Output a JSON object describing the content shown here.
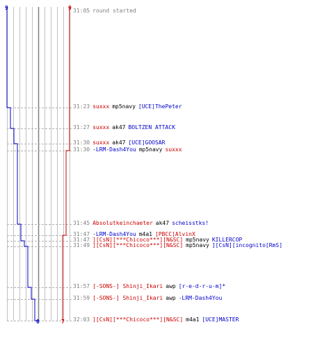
{
  "colors": {
    "team_a": "#0000cc",
    "team_b": "#cc0000",
    "gridline": "#c0c0c0",
    "dashed_line": "#b0b0b0",
    "time": "#808080"
  },
  "counters": {
    "team_a_start": "9",
    "team_b_start": "9",
    "team_a_end": "0",
    "team_b_end": "7"
  },
  "events": [
    {
      "time": "31:05",
      "parts": [
        {
          "text": "round started",
          "team": "gray"
        }
      ],
      "alive_a": 9,
      "alive_b": 9
    },
    {
      "time": "31:23",
      "parts": [
        {
          "text": "suxxx",
          "team": "red"
        },
        {
          "text": "mp5navy",
          "team": "black"
        },
        {
          "text": "[UCE]ThePeter",
          "team": "blue"
        }
      ],
      "alive_a": 8,
      "alive_b": 9
    },
    {
      "time": "31:27",
      "parts": [
        {
          "text": "suxxx",
          "team": "red"
        },
        {
          "text": "ak47",
          "team": "black"
        },
        {
          "text": "BOLTZEN ATTACK",
          "team": "blue"
        }
      ],
      "alive_a": 7,
      "alive_b": 9
    },
    {
      "time": "31:30",
      "parts": [
        {
          "text": "suxxx",
          "team": "red"
        },
        {
          "text": "ak47",
          "team": "black"
        },
        {
          "text": "[UCE]GOOSAR",
          "team": "blue"
        }
      ],
      "alive_a": 6,
      "alive_b": 9
    },
    {
      "time": "31:30",
      "parts": [
        {
          "text": "-LRM-Dash4You",
          "team": "blue"
        },
        {
          "text": "mp5navy",
          "team": "black"
        },
        {
          "text": "suxxx",
          "team": "red"
        }
      ],
      "alive_a": 6,
      "alive_b": 8
    },
    {
      "time": "31:45",
      "parts": [
        {
          "text": "Absolutkeinchaeter",
          "team": "red"
        },
        {
          "text": "ak47",
          "team": "black"
        },
        {
          "text": "scheisstks!",
          "team": "blue"
        }
      ],
      "alive_a": 5,
      "alive_b": 8
    },
    {
      "time": "31:47",
      "parts": [
        {
          "text": "-LRM-Dash4You",
          "team": "blue"
        },
        {
          "text": "m4a1",
          "team": "black"
        },
        {
          "text": "[PBCC]AlvinX",
          "team": "red"
        }
      ],
      "alive_a": 5,
      "alive_b": 7
    },
    {
      "time": "31:47",
      "parts": [
        {
          "text": "][CsN][***Chicoco***][N&SC]",
          "team": "red"
        },
        {
          "text": "mp5navy",
          "team": "black"
        },
        {
          "text": "KILLERCOP",
          "team": "blue"
        }
      ],
      "alive_a": 4,
      "alive_b": 7
    },
    {
      "time": "31:49",
      "parts": [
        {
          "text": "][CsN][***Chicoco***][N&SC]",
          "team": "red"
        },
        {
          "text": "mp5navy",
          "team": "black"
        },
        {
          "text": "][CsN][incognito[RmS]",
          "team": "blue"
        }
      ],
      "alive_a": 3,
      "alive_b": 7
    },
    {
      "time": "31:57",
      "parts": [
        {
          "text": "[-SONS-] Shinji_Ikari",
          "team": "red"
        },
        {
          "text": "awp",
          "team": "black"
        },
        {
          "text": "[r-e-d-r-u-m]*",
          "team": "blue"
        }
      ],
      "alive_a": 2,
      "alive_b": 7
    },
    {
      "time": "31:59",
      "parts": [
        {
          "text": "[-SONS-] Shinji_Ikari",
          "team": "red"
        },
        {
          "text": "awp",
          "team": "black"
        },
        {
          "text": "-LRM-Dash4You",
          "team": "blue"
        }
      ],
      "alive_a": 1,
      "alive_b": 7
    },
    {
      "time": "32:03",
      "parts": [
        {
          "text": "][CsN][***Chicoco***][N&SC]",
          "team": "red"
        },
        {
          "text": "m4a1",
          "team": "black"
        },
        {
          "text": "[UCE]MASTER",
          "team": "blue"
        }
      ],
      "alive_a": 0,
      "alive_b": 7
    }
  ]
}
